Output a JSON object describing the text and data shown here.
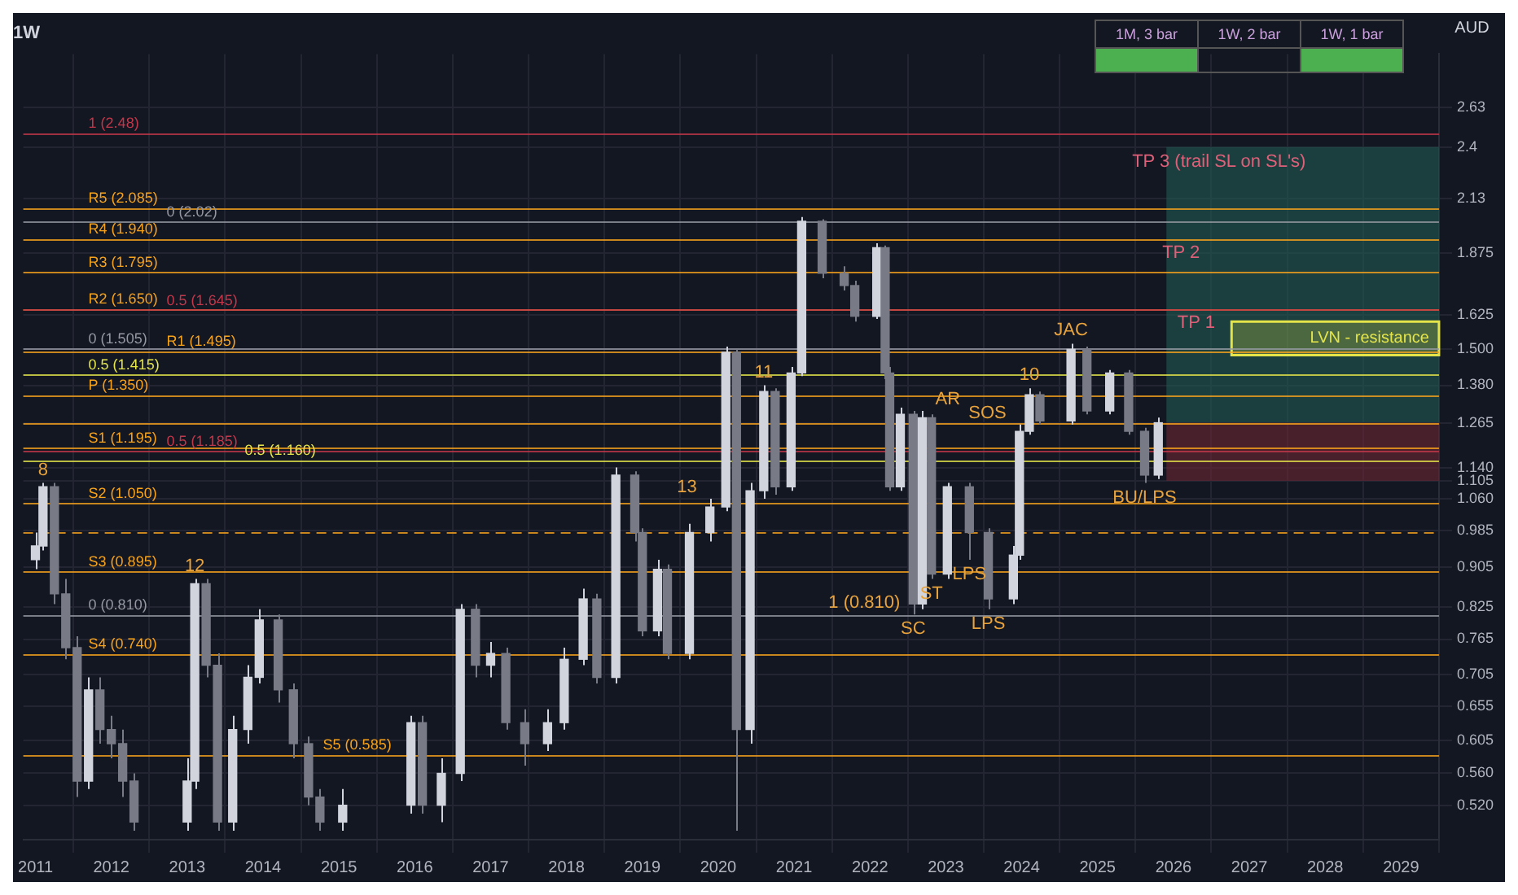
{
  "chart_data": {
    "type": "candlestick",
    "title": "1W",
    "ylabel": "AUD",
    "x": [
      2011.0,
      2011.1,
      2011.25,
      2011.4,
      2011.55,
      2011.7,
      2011.85,
      2012.0,
      2012.15,
      2012.3,
      2013.0,
      2013.1,
      2013.25,
      2013.4,
      2013.6,
      2013.8,
      2013.95,
      2014.2,
      2014.4,
      2014.6,
      2014.75,
      2015.05,
      2015.95,
      2016.1,
      2016.35,
      2016.6,
      2016.8,
      2017.0,
      2017.2,
      2017.45,
      2017.75,
      2017.97,
      2018.22,
      2018.4,
      2018.65,
      2018.9,
      2019.0,
      2019.2,
      2019.33,
      2019.62,
      2019.89,
      2020.1,
      2020.24,
      2020.42,
      2020.6,
      2020.75,
      2020.96,
      2021.1,
      2021.37,
      2021.66,
      2021.8,
      2022.09,
      2022.2,
      2022.26,
      2022.4,
      2022.57,
      2022.69,
      2022.81,
      2023.02,
      2023.31,
      2023.56,
      2023.89,
      2023.97,
      2024.1,
      2024.24,
      2024.65,
      2024.86,
      2025.16,
      2025.41,
      2025.62,
      2025.8
    ],
    "series": [
      {
        "colors": [
          "#d1d4dc",
          "#d1d4dc",
          "#787b86",
          "#787b86",
          "#787b86",
          "#d1d4dc",
          "#787b86",
          "#787b86",
          "#787b86",
          "#787b86",
          "#d1d4dc",
          "#d1d4dc",
          "#787b86",
          "#787b86",
          "#d1d4dc",
          "#d1d4dc",
          "#d1d4dc",
          "#787b86",
          "#787b86",
          "#787b86",
          "#787b86",
          "#d1d4dc",
          "#d1d4dc",
          "#787b86",
          "#d1d4dc",
          "#d1d4dc",
          "#787b86",
          "#d1d4dc",
          "#787b86",
          "#787b86",
          "#d1d4dc",
          "#d1d4dc",
          "#d1d4dc",
          "#787b86",
          "#d1d4dc",
          "#787b86",
          "#787b86",
          "#d1d4dc",
          "#787b86",
          "#d1d4dc",
          "#d1d4dc",
          "#d1d4dc",
          "#787b86",
          "#d1d4dc",
          "#d1d4dc",
          "#787b86",
          "#d1d4dc",
          "#d1d4dc",
          "#787b86",
          "#787b86",
          "#787b86",
          "#d1d4dc",
          "#787b86",
          "#787b86",
          "#d1d4dc",
          "#787b86",
          "#d1d4dc",
          "#787b86",
          "#d1d4dc",
          "#787b86",
          "#787b86",
          "#d1d4dc",
          "#d1d4dc",
          "#d1d4dc",
          "#787b86",
          "#d1d4dc",
          "#787b86",
          "#d1d4dc",
          "#787b86",
          "#787b86",
          "#d1d4dc"
        ],
        "ohlc": [
          [
            0.92,
            0.98,
            0.9,
            0.95
          ],
          [
            0.95,
            1.1,
            0.94,
            1.09
          ],
          [
            1.09,
            1.1,
            0.83,
            0.85
          ],
          [
            0.85,
            0.88,
            0.73,
            0.75
          ],
          [
            0.75,
            0.77,
            0.53,
            0.55
          ],
          [
            0.55,
            0.7,
            0.54,
            0.68
          ],
          [
            0.68,
            0.7,
            0.6,
            0.62
          ],
          [
            0.62,
            0.64,
            0.58,
            0.6
          ],
          [
            0.6,
            0.62,
            0.53,
            0.55
          ],
          [
            0.55,
            0.56,
            0.49,
            0.5
          ],
          [
            0.5,
            0.58,
            0.49,
            0.55
          ],
          [
            0.55,
            0.88,
            0.54,
            0.87
          ],
          [
            0.87,
            0.88,
            0.7,
            0.72
          ],
          [
            0.72,
            0.74,
            0.49,
            0.5
          ],
          [
            0.5,
            0.64,
            0.49,
            0.62
          ],
          [
            0.62,
            0.72,
            0.6,
            0.7
          ],
          [
            0.7,
            0.82,
            0.69,
            0.8
          ],
          [
            0.8,
            0.81,
            0.66,
            0.68
          ],
          [
            0.68,
            0.69,
            0.58,
            0.6
          ],
          [
            0.6,
            0.61,
            0.52,
            0.53
          ],
          [
            0.53,
            0.54,
            0.49,
            0.5
          ],
          [
            0.5,
            0.54,
            0.49,
            0.52
          ],
          [
            0.52,
            0.64,
            0.51,
            0.63
          ],
          [
            0.63,
            0.64,
            0.51,
            0.52
          ],
          [
            0.52,
            0.58,
            0.5,
            0.56
          ],
          [
            0.56,
            0.83,
            0.55,
            0.82
          ],
          [
            0.82,
            0.83,
            0.7,
            0.72
          ],
          [
            0.72,
            0.76,
            0.7,
            0.74
          ],
          [
            0.74,
            0.75,
            0.62,
            0.63
          ],
          [
            0.63,
            0.65,
            0.57,
            0.6
          ],
          [
            0.6,
            0.65,
            0.59,
            0.63
          ],
          [
            0.63,
            0.75,
            0.62,
            0.73
          ],
          [
            0.73,
            0.86,
            0.72,
            0.84
          ],
          [
            0.84,
            0.85,
            0.69,
            0.7
          ],
          [
            0.7,
            1.14,
            0.69,
            1.12
          ],
          [
            1.12,
            1.13,
            0.96,
            0.98
          ],
          [
            0.98,
            0.99,
            0.77,
            0.78
          ],
          [
            0.78,
            0.92,
            0.77,
            0.9
          ],
          [
            0.9,
            0.91,
            0.73,
            0.74
          ],
          [
            0.74,
            1.0,
            0.73,
            0.98
          ],
          [
            0.98,
            1.06,
            0.96,
            1.04
          ],
          [
            1.04,
            1.51,
            1.03,
            1.49
          ],
          [
            1.49,
            1.5,
            0.49,
            0.62
          ],
          [
            0.62,
            1.1,
            0.6,
            1.08
          ],
          [
            1.08,
            1.38,
            1.06,
            1.36
          ],
          [
            1.36,
            1.37,
            1.07,
            1.09
          ],
          [
            1.09,
            1.44,
            1.08,
            1.42
          ],
          [
            1.42,
            2.04,
            1.41,
            2.02
          ],
          [
            2.02,
            2.03,
            1.77,
            1.79
          ],
          [
            1.79,
            1.82,
            1.72,
            1.74
          ],
          [
            1.74,
            1.76,
            1.6,
            1.62
          ],
          [
            1.62,
            1.92,
            1.61,
            1.9
          ],
          [
            1.9,
            1.91,
            1.4,
            1.42
          ],
          [
            1.42,
            1.44,
            1.08,
            1.09
          ],
          [
            1.09,
            1.31,
            1.08,
            1.29
          ],
          [
            1.29,
            1.3,
            0.81,
            0.83
          ],
          [
            0.83,
            1.3,
            0.82,
            1.28
          ],
          [
            1.28,
            1.29,
            0.88,
            0.89
          ],
          [
            0.89,
            1.1,
            0.88,
            1.09
          ],
          [
            1.09,
            1.1,
            0.92,
            0.98
          ],
          [
            0.98,
            0.99,
            0.82,
            0.84
          ],
          [
            0.84,
            0.95,
            0.83,
            0.93
          ],
          [
            0.93,
            1.26,
            0.92,
            1.24
          ],
          [
            1.24,
            1.37,
            1.23,
            1.35
          ],
          [
            1.35,
            1.36,
            1.26,
            1.27
          ],
          [
            1.27,
            1.52,
            1.26,
            1.5
          ],
          [
            1.5,
            1.51,
            1.29,
            1.3
          ],
          [
            1.3,
            1.43,
            1.29,
            1.42
          ],
          [
            1.42,
            1.43,
            1.23,
            1.24
          ],
          [
            1.24,
            1.25,
            1.1,
            1.12
          ],
          [
            1.12,
            1.28,
            1.11,
            1.265
          ]
        ]
      }
    ],
    "log": "y",
    "grid": true,
    "legend": false,
    "xlim": [
      2010.84,
      2029.5
    ],
    "xticks": [
      2011,
      2012,
      2013,
      2014,
      2015,
      2016,
      2017,
      2018,
      2019,
      2020,
      2021,
      2022,
      2023,
      2024,
      2025,
      2026,
      2027,
      2028,
      2029
    ],
    "ylim": [
      0.48,
      2.98
    ],
    "yticks": [
      2.63,
      2.4,
      2.13,
      {
        "value": 1.875,
        "label": "1.875"
      },
      {
        "value": 1.625,
        "label": "1.625"
      },
      {
        "value": 1.5,
        "label": "1.500"
      },
      {
        "value": 1.38,
        "label": "1.380"
      },
      {
        "value": 1.265,
        "label": "1.265"
      },
      {
        "value": 1.14,
        "label": "1.140"
      },
      {
        "value": 1.105,
        "label": "1.105"
      },
      {
        "value": 1.06,
        "label": "1.060"
      },
      {
        "value": 0.985,
        "label": "0.985"
      },
      {
        "value": 0.905,
        "label": "0.905"
      },
      {
        "value": 0.825,
        "label": "0.825"
      },
      {
        "value": 0.765,
        "label": "0.765"
      },
      {
        "value": 0.705,
        "label": "0.705"
      },
      {
        "value": 0.655,
        "label": "0.655"
      },
      {
        "value": 0.605,
        "label": "0.605"
      },
      {
        "value": 0.56,
        "label": "0.560"
      },
      {
        "value": 0.52,
        "label": "0.520"
      }
    ],
    "ref_lines": [
      {
        "axis": "y",
        "value": 2.48,
        "label": "1 (2.48)",
        "color": "#c2374a"
      },
      {
        "axis": "y",
        "value": 2.085,
        "label": "R5 (2.085)",
        "color": "#f7a21b"
      },
      {
        "axis": "y",
        "value": 2.02,
        "label": "0 (2.02)",
        "color": "#9598a1"
      },
      {
        "axis": "y",
        "value": 1.94,
        "label": "R4 (1.940)",
        "color": "#f7a21b"
      },
      {
        "axis": "y",
        "value": 1.795,
        "label": "R3 (1.795)",
        "color": "#f7a21b"
      },
      {
        "axis": "y",
        "value": 1.65,
        "label": "R2 (1.650)",
        "color": "#f7a21b"
      },
      {
        "axis": "y",
        "value": 1.645,
        "label": "0.5 (1.645)",
        "color": "#c2374a"
      },
      {
        "axis": "y",
        "value": 1.505,
        "label": "0 (1.505)",
        "color": "#9598a1"
      },
      {
        "axis": "y",
        "value": 1.495,
        "label": "R1 (1.495)",
        "color": "#f7a21b"
      },
      {
        "axis": "y",
        "value": 1.415,
        "label": "0.5 (1.415)",
        "color": "#e5e54a"
      },
      {
        "axis": "y",
        "value": 1.35,
        "label": "P (1.350)",
        "color": "#f7a21b"
      },
      {
        "axis": "y",
        "value": 1.265,
        "color": "#f7a21b"
      },
      {
        "axis": "y",
        "value": 1.195,
        "label": "S1 (1.195)",
        "color": "#f7a21b"
      },
      {
        "axis": "y",
        "value": 1.185,
        "label": "0.5 (1.185)",
        "color": "#c2374a"
      },
      {
        "axis": "y",
        "value": 1.16,
        "label": "0.5 (1.160)",
        "color": "#e5e54a"
      },
      {
        "axis": "y",
        "value": 1.05,
        "label": "S2 (1.050)",
        "color": "#f7a21b"
      },
      {
        "axis": "y",
        "value": 0.98,
        "color": "#f7a21b",
        "line_style": "dashed"
      },
      {
        "axis": "y",
        "value": 0.895,
        "label": "S3 (0.895)",
        "color": "#f7a21b"
      },
      {
        "axis": "y",
        "value": 0.81,
        "label": "0 (0.810)",
        "color": "#9598a1"
      },
      {
        "axis": "y",
        "value": 0.74,
        "label": "S4 (0.740)",
        "color": "#f7a21b"
      },
      {
        "axis": "y",
        "value": 0.585,
        "label": "S5 (0.585)",
        "color": "#f7a21b"
      }
    ],
    "bands": [
      {
        "axis": "y",
        "from": 1.265,
        "to": 2.4,
        "color": "#1f5a52"
      },
      {
        "axis": "y",
        "from": 1.105,
        "to": 1.265,
        "color": "#6b2633"
      },
      {
        "axis": "y",
        "from": 1.48,
        "to": 1.6,
        "label": "LVN - resistance",
        "color": "#e5e54a"
      }
    ],
    "annotations": [
      "1M, 3 bar",
      "1W, 2 bar",
      "1W, 1 bar",
      {
        "text": "TP 3 (trail SL on SL's)",
        "x": 2026.6,
        "y": 2.4
      },
      {
        "text": "TP 2",
        "x": 2026.1,
        "y": 1.94
      },
      {
        "text": "TP 1",
        "x": 2026.3,
        "y": 1.65
      },
      {
        "text": "SC",
        "x": 2022.57,
        "y": 0.81
      },
      {
        "text": "1 (0.810)",
        "x": 2022.57,
        "y": 0.81
      },
      {
        "text": "AR",
        "x": 2022.69,
        "y": 1.3
      },
      {
        "text": "ST",
        "x": 2022.81,
        "y": 0.88
      },
      {
        "text": "LPS",
        "x": 2023.31,
        "y": 0.92
      },
      {
        "text": "LPS",
        "x": 2023.56,
        "y": 0.82
      },
      {
        "text": "SOS",
        "x": 2023.97,
        "y": 1.26
      },
      {
        "text": "JAC",
        "x": 2024.65,
        "y": 1.52
      },
      {
        "text": "BU/LPS",
        "x": 2025.62,
        "y": 1.1
      },
      {
        "text": "8",
        "x": 2011.1,
        "y": 1.1
      },
      {
        "text": "12",
        "x": 2013.1,
        "y": 0.88
      },
      {
        "text": "13",
        "x": 2019.89,
        "y": 1.06
      },
      {
        "text": "11",
        "x": 2020.6,
        "y": 1.38
      },
      {
        "text": "10",
        "x": 2024.1,
        "y": 1.37
      }
    ]
  }
}
